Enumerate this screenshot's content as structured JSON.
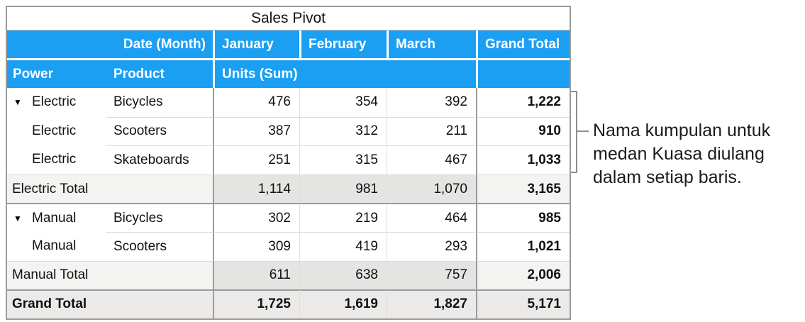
{
  "colors": {
    "header_blue": "#1a9ff3",
    "header_text": "#ffffff",
    "grid_dark": "#9b9b9b",
    "grid_light": "#dcdcdc",
    "subtotal_label_bg": "#f3f3f1",
    "subtotal_value_bg": "#e4e4e2",
    "grand_row_bg": "#ebeae8",
    "bracket_gray": "#8e8e8e"
  },
  "icons": {
    "disclosure": "▼"
  },
  "table": {
    "title": "Sales Pivot",
    "header_row1": {
      "date_field": "Date (Month)",
      "month1": "January",
      "month2": "February",
      "month3": "March",
      "grand_total": "Grand Total"
    },
    "header_row2": {
      "power": "Power",
      "product": "Product",
      "units": "Units (Sum)"
    }
  },
  "rows": [
    {
      "type": "data",
      "disclosure": true,
      "power": "Electric",
      "product": "Bicycles",
      "jan": "476",
      "feb": "354",
      "mar": "392",
      "total": "1,222"
    },
    {
      "type": "data",
      "disclosure": false,
      "power": "Electric",
      "product": "Scooters",
      "jan": "387",
      "feb": "312",
      "mar": "211",
      "total": "910"
    },
    {
      "type": "data",
      "disclosure": false,
      "power": "Electric",
      "product": "Skateboards",
      "jan": "251",
      "feb": "315",
      "mar": "467",
      "total": "1,033"
    },
    {
      "type": "subtotal",
      "label": "Electric Total",
      "jan": "1,114",
      "feb": "981",
      "mar": "1,070",
      "total": "3,165"
    },
    {
      "type": "data",
      "disclosure": true,
      "power": "Manual",
      "product": "Bicycles",
      "jan": "302",
      "feb": "219",
      "mar": "464",
      "total": "985"
    },
    {
      "type": "data",
      "disclosure": false,
      "power": "Manual",
      "product": "Scooters",
      "jan": "309",
      "feb": "419",
      "mar": "293",
      "total": "1,021"
    },
    {
      "type": "subtotal",
      "label": "Manual Total",
      "jan": "611",
      "feb": "638",
      "mar": "757",
      "total": "2,006"
    },
    {
      "type": "grandtotal",
      "label": "Grand Total",
      "jan": "1,725",
      "feb": "1,619",
      "mar": "1,827",
      "total": "5,171"
    }
  ],
  "annotation": {
    "line1": "Nama kumpulan untuk",
    "line2": "medan Kuasa diulang",
    "line3": "dalam setiap baris."
  }
}
